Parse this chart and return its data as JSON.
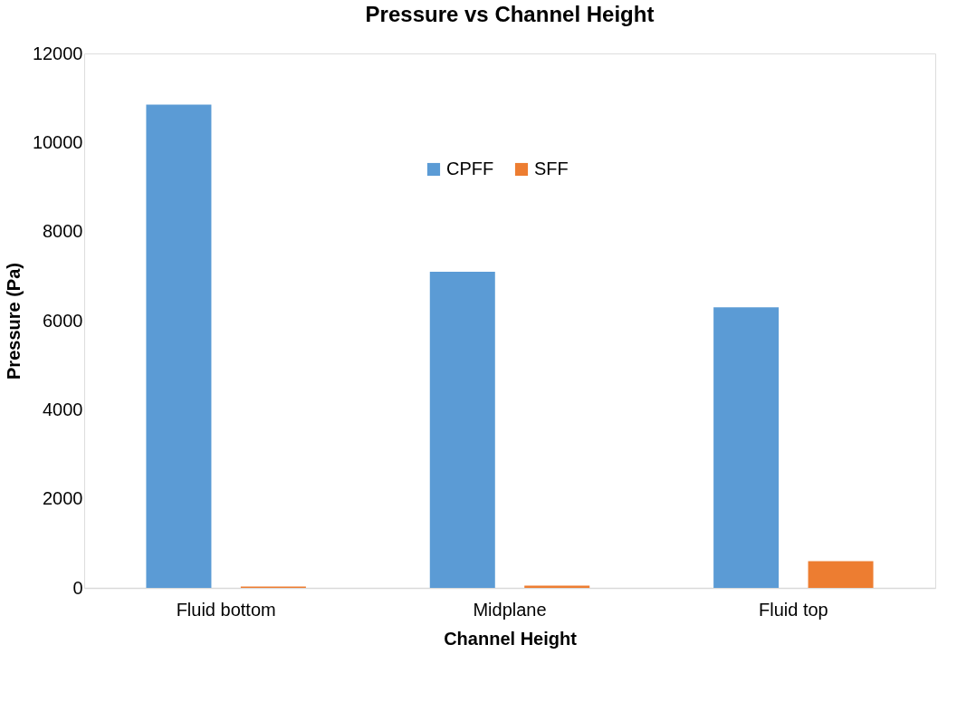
{
  "chart_data": {
    "type": "bar",
    "title": "Pressure vs Channel Height",
    "xlabel": "Channel Height",
    "ylabel": "Pressure (Pa)",
    "categories": [
      "Fluid bottom",
      "Midplane",
      "Fluid top"
    ],
    "series": [
      {
        "name": "CPFF",
        "color": "#5b9bd5",
        "values": [
          10850,
          7100,
          6300
        ]
      },
      {
        "name": "SFF",
        "color": "#ed7d31",
        "values": [
          30,
          50,
          600
        ]
      }
    ],
    "ylim": [
      0,
      12000
    ],
    "yticks": [
      0,
      2000,
      4000,
      6000,
      8000,
      10000,
      12000
    ],
    "grid": false,
    "legend": "top"
  }
}
